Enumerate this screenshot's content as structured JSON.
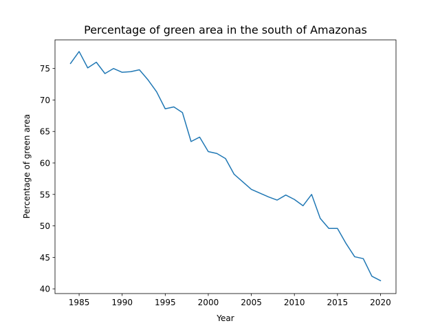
{
  "chart_data": {
    "type": "line",
    "title": "Percentage of green area in the south of Amazonas",
    "xlabel": "Year",
    "ylabel": "Percentage of green area",
    "xlim": [
      1982.2,
      2021.8
    ],
    "ylim": [
      39.25,
      79.55
    ],
    "xticks": [
      1985,
      1990,
      1995,
      2000,
      2005,
      2010,
      2015,
      2020
    ],
    "yticks": [
      40,
      45,
      50,
      55,
      60,
      65,
      70,
      75
    ],
    "grid": false,
    "series": [
      {
        "color": "#1f77b4",
        "x": [
          1984,
          1985,
          1986,
          1987,
          1988,
          1989,
          1990,
          1991,
          1992,
          1993,
          1994,
          1995,
          1996,
          1997,
          1998,
          1999,
          2000,
          2001,
          2002,
          2003,
          2004,
          2005,
          2006,
          2007,
          2008,
          2009,
          2010,
          2011,
          2012,
          2013,
          2014,
          2015,
          2016,
          2017,
          2018,
          2019,
          2020
        ],
        "y": [
          75.8,
          77.7,
          75.1,
          76.0,
          74.2,
          75.0,
          74.4,
          74.5,
          74.8,
          73.2,
          71.3,
          68.6,
          68.9,
          68.0,
          63.4,
          64.1,
          61.8,
          61.5,
          60.7,
          58.2,
          57.0,
          55.8,
          55.2,
          54.6,
          54.1,
          54.9,
          54.2,
          53.2,
          55.0,
          51.2,
          49.6,
          49.6,
          47.2,
          45.1,
          44.8,
          42.0,
          41.3
        ]
      }
    ]
  }
}
